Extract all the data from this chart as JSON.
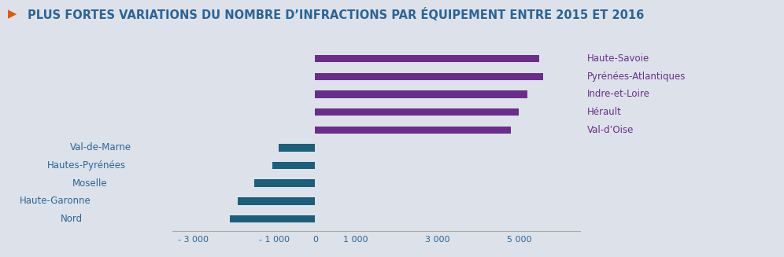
{
  "categories": [
    "Nord",
    "Haute-Garonne",
    "Moselle",
    "Hautes-Pyrénées",
    "Val-de-Marne",
    "Val-d’Oise",
    "Hérault",
    "Indre-et-Loire",
    "Pyrénées-Atlantiques",
    "Haute-Savoie"
  ],
  "values": [
    -2100,
    -1900,
    -1500,
    -1050,
    -900,
    4800,
    5000,
    5200,
    5600,
    5500
  ],
  "positive_color": "#6b2d8b",
  "negative_color": "#1c5f7a",
  "background_color": "#dde2ea",
  "title": "▶  PLUS FORTES VARIATIONS DU NOMBRE D’INFRACTIONS PAR ÉQUIPEMENT ENTRE 2015 ET 2016",
  "title_color": "#2a6496",
  "title_arrow_color": "#e05a00",
  "label_color_positive": "#6b2d8b",
  "label_color_negative": "#2a6496",
  "xlim": [
    -3500,
    6500
  ],
  "xticks": [
    -3000,
    -1000,
    0,
    1000,
    3000,
    5000
  ],
  "xtick_labels": [
    "- 3 000",
    "- 1 000",
    "0",
    "1 000",
    "3 000",
    "5 000"
  ],
  "bar_height": 0.42,
  "title_fontsize": 10.5,
  "label_fontsize": 8.5,
  "tick_fontsize": 8.0
}
